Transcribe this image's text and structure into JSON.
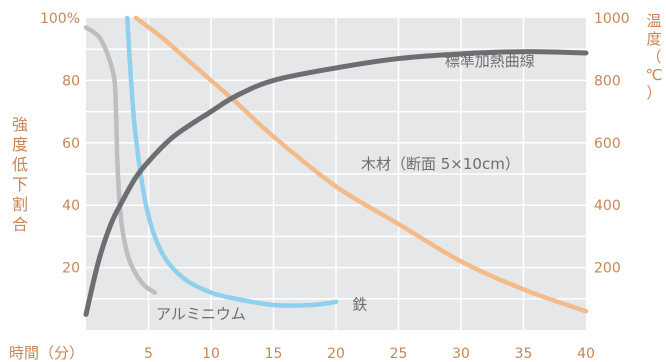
{
  "chart_data": {
    "type": "line",
    "x": {
      "label": "時間（分）",
      "ticks": [
        5,
        10,
        15,
        20,
        25,
        30,
        35,
        40
      ],
      "range": [
        0,
        40
      ]
    },
    "y_left": {
      "label_chars": [
        "強",
        "度",
        "低",
        "下",
        "割",
        "合"
      ],
      "ticks": [
        "100%",
        "80",
        "60",
        "40",
        "20"
      ],
      "tick_values": [
        100,
        80,
        60,
        40,
        20
      ],
      "range": [
        0,
        100
      ]
    },
    "y_right": {
      "label_chars": [
        "温",
        "度",
        "（",
        "℃",
        "）"
      ],
      "ticks": [
        "1000",
        "800",
        "600",
        "400",
        "200"
      ],
      "tick_values": [
        1000,
        800,
        600,
        400,
        200
      ],
      "range": [
        0,
        1000
      ]
    },
    "grid": true,
    "series": [
      {
        "name": "標準加熱曲線",
        "axis": "right",
        "color": "#6d6e71",
        "points": [
          [
            0,
            50
          ],
          [
            1,
            220
          ],
          [
            2,
            340
          ],
          [
            3,
            420
          ],
          [
            4,
            490
          ],
          [
            5,
            540
          ],
          [
            7,
            620
          ],
          [
            10,
            700
          ],
          [
            12,
            750
          ],
          [
            15,
            800
          ],
          [
            20,
            840
          ],
          [
            25,
            870
          ],
          [
            30,
            885
          ],
          [
            35,
            892
          ],
          [
            40,
            888
          ]
        ]
      },
      {
        "name": "木材（断面 5×10cm）",
        "axis": "right",
        "color": "#f4bb8a",
        "points": [
          [
            4,
            1000
          ],
          [
            6,
            940
          ],
          [
            8,
            870
          ],
          [
            10,
            800
          ],
          [
            12,
            730
          ],
          [
            15,
            620
          ],
          [
            20,
            460
          ],
          [
            25,
            340
          ],
          [
            30,
            220
          ],
          [
            35,
            130
          ],
          [
            40,
            60
          ]
        ]
      },
      {
        "name": "鉄",
        "axis": "left",
        "color": "#8fd0ef",
        "points": [
          [
            3.3,
            100
          ],
          [
            3.6,
            80
          ],
          [
            3.9,
            65
          ],
          [
            4.3,
            52
          ],
          [
            4.8,
            40
          ],
          [
            5.5,
            30
          ],
          [
            6.5,
            22
          ],
          [
            8,
            16
          ],
          [
            10,
            12
          ],
          [
            12,
            10
          ],
          [
            15,
            8
          ],
          [
            18,
            8
          ],
          [
            20,
            9
          ]
        ]
      },
      {
        "name": "アルミニウム",
        "axis": "left",
        "color": "#bcbec0",
        "points": [
          [
            0,
            97
          ],
          [
            1.2,
            93
          ],
          [
            2.2,
            82
          ],
          [
            2.4,
            70
          ],
          [
            2.5,
            55
          ],
          [
            2.7,
            40
          ],
          [
            3,
            30
          ],
          [
            3.5,
            22
          ],
          [
            4.5,
            15
          ],
          [
            5.5,
            12
          ]
        ]
      }
    ],
    "annotations": [
      {
        "text": "標準加熱曲線",
        "axis": "right",
        "x": 28.7,
        "y": 860
      },
      {
        "text": "木材（断面 5×10cm）",
        "axis": "right",
        "x": 22,
        "y": 530
      },
      {
        "text": "鉄",
        "axis": "left",
        "x": 21.3,
        "y": 8
      },
      {
        "text": "アルミニウム",
        "axis": "left",
        "x": 5.6,
        "y": 5
      }
    ]
  },
  "colors": {
    "plot_background": "#e6e7e8",
    "grid": "#ffffff",
    "axis_text": "#c5875a",
    "annotation_text": "#6d6e71"
  }
}
